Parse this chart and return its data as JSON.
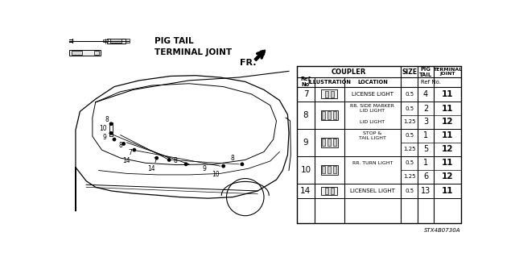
{
  "legend_items": [
    {
      "label": "PIG TAIL"
    },
    {
      "label": "TERMINAL JOINT"
    }
  ],
  "fr_label": "FR.",
  "table": {
    "rows": [
      {
        "ref": "7",
        "location": "LICENSE LIGHT",
        "sub_rows": [
          {
            "size": "0.5",
            "pig_tail": "4",
            "terminal": "11"
          }
        ]
      },
      {
        "ref": "8",
        "location": "RR. SIDE MARKER\nLID LIGHT",
        "sub_rows": [
          {
            "size": "0.5",
            "pig_tail": "2",
            "terminal": "11",
            "location": "RR. SIDE MARKER\nLID LIGHT"
          },
          {
            "size": "1.25",
            "pig_tail": "3",
            "terminal": "12",
            "location": "LID LIGHT"
          }
        ]
      },
      {
        "ref": "9",
        "location": "STOP &\nTAIL LIGHT",
        "sub_rows": [
          {
            "size": "0.5",
            "pig_tail": "1",
            "terminal": "11",
            "location": "STOP &\nTAIL LIGHT"
          },
          {
            "size": "1.25",
            "pig_tail": "5",
            "terminal": "12",
            "location": ""
          }
        ]
      },
      {
        "ref": "10",
        "location": "RR. TURN LIGHT",
        "sub_rows": [
          {
            "size": "0.5",
            "pig_tail": "1",
            "terminal": "11",
            "location": "RR. TURN LIGHT"
          },
          {
            "size": "1.25",
            "pig_tail": "6",
            "terminal": "12",
            "location": ""
          }
        ]
      },
      {
        "ref": "14",
        "location": "LICENSEL LIGHT",
        "sub_rows": [
          {
            "size": "0.5",
            "pig_tail": "13",
            "terminal": "11"
          }
        ]
      }
    ]
  },
  "stock_code": "STX4B0730A",
  "bg_color": "#ffffff",
  "lc": "#000000",
  "tc": "#000000"
}
